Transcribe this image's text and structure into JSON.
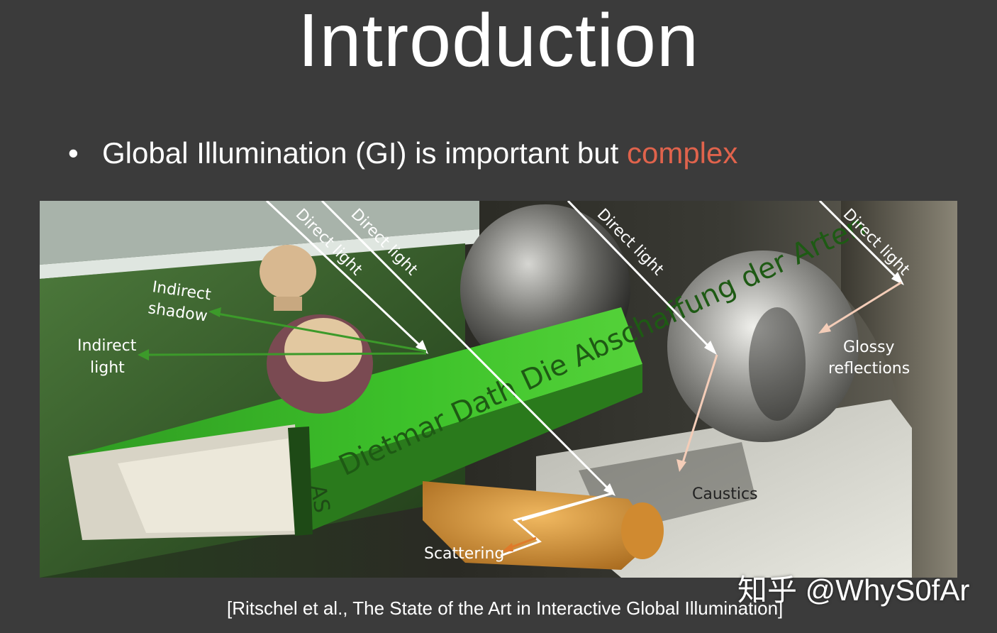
{
  "slide": {
    "title": "Introduction",
    "bullet_text": "Global Illumination (GI) is important but ",
    "bullet_highlight": "complex",
    "highlight_color": "#e0634c",
    "background_color": "#3b3b3b"
  },
  "photo": {
    "labels": {
      "direct_light_1": "Direct light",
      "direct_light_2": "Direct light",
      "direct_light_3": "Direct light",
      "direct_light_4": "Direct light",
      "indirect_shadow_1": "Indirect",
      "indirect_shadow_2": "shadow",
      "indirect_light_1": "Indirect",
      "indirect_light_2": "light",
      "glossy_1": "Glossy",
      "glossy_2": "reflections",
      "caustics": "Caustics",
      "scattering": "Scattering",
      "book_text": "Dietmar Dath  Die Abschaffung der Arten",
      "book_spine": "AS"
    },
    "colors": {
      "direct": "#ffffff",
      "indirect": "#3c9a2a",
      "glossy": "#f4cdb8",
      "scattering": "#e07a2a"
    }
  },
  "citation": "[Ritschel et al., The State of the Art in Interactive Global Illumination]",
  "watermark": "知乎 @WhyS0fAr"
}
